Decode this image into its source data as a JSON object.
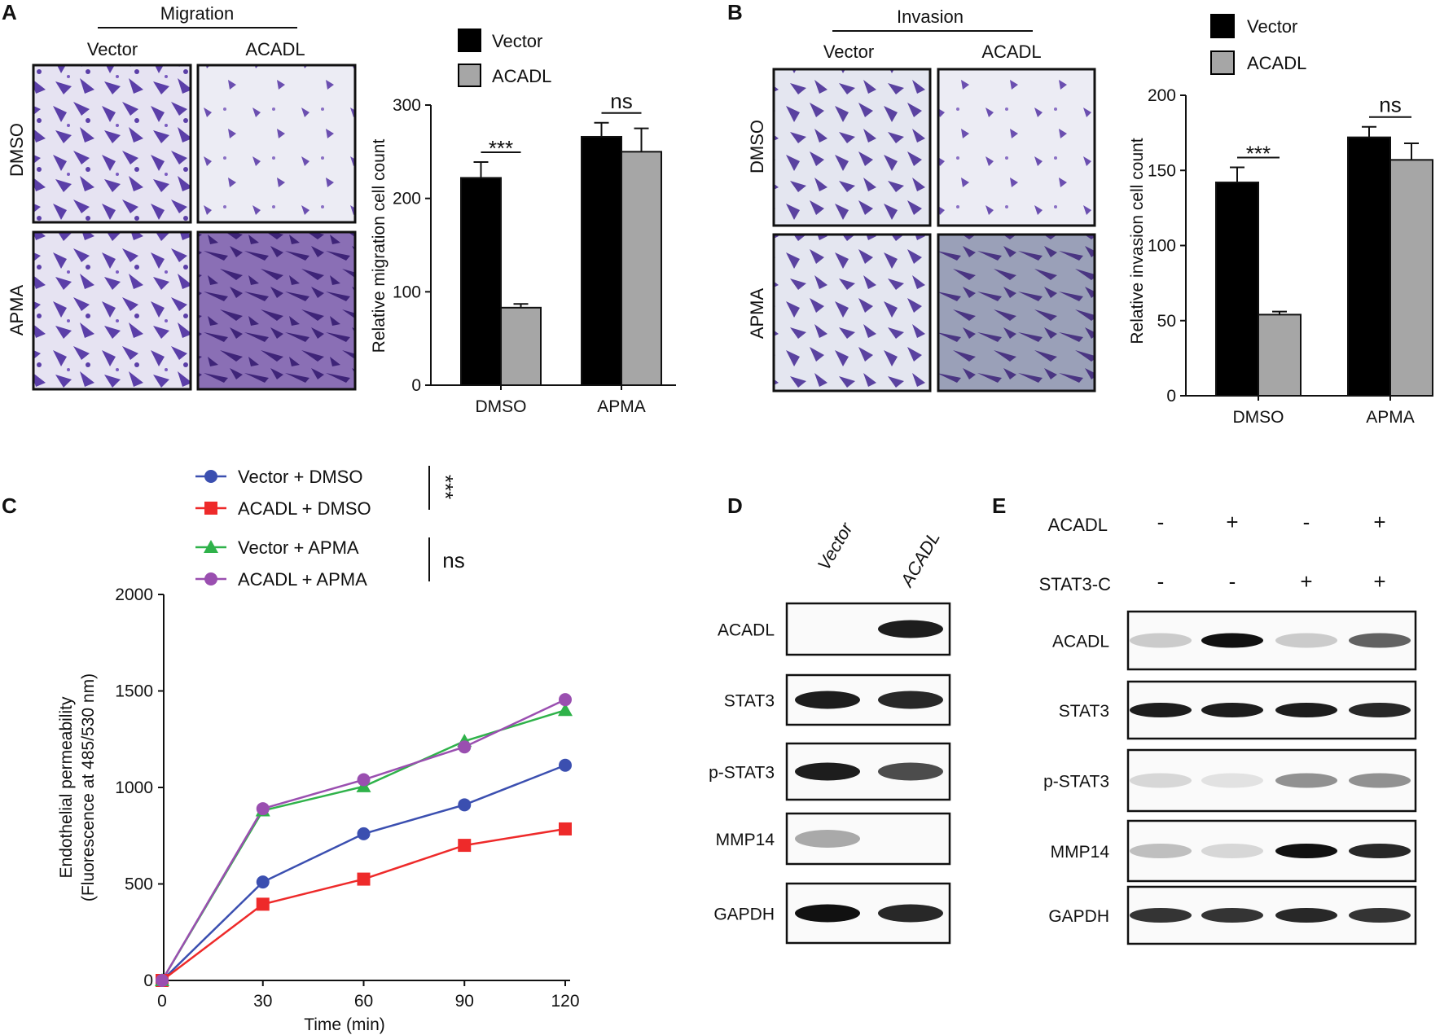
{
  "panels": {
    "A": {
      "letter": "A",
      "group_label": "Migration",
      "columns": [
        "Vector",
        "ACADL"
      ],
      "rows": [
        "DMSO",
        "APMA"
      ]
    },
    "B": {
      "letter": "B",
      "group_label": "Invasion",
      "columns": [
        "Vector",
        "ACADL"
      ],
      "rows": [
        "DMSO",
        "APMA"
      ]
    },
    "C": {
      "letter": "C"
    },
    "D": {
      "letter": "D",
      "lanes": [
        "Vector",
        "ACADL"
      ],
      "blots": [
        "ACADL",
        "STAT3",
        "p-STAT3",
        "MMP14",
        "GAPDH"
      ]
    },
    "E": {
      "letter": "E",
      "conditions": [
        {
          "label": "ACADL",
          "values": [
            "-",
            "+",
            "-",
            "+"
          ]
        },
        {
          "label": "STAT3-C",
          "values": [
            "-",
            "-",
            "+",
            "+"
          ]
        }
      ],
      "blots": [
        "ACADL",
        "STAT3",
        "p-STAT3",
        "MMP14",
        "GAPDH"
      ]
    }
  },
  "chart_data": [
    {
      "id": "A-bar",
      "type": "bar",
      "categories": [
        "DMSO",
        "APMA"
      ],
      "series": [
        {
          "name": "Vector",
          "color": "#000000",
          "values": [
            222,
            266
          ],
          "errors": [
            17,
            15
          ]
        },
        {
          "name": "ACADL",
          "color": "#a6a6a6",
          "values": [
            83,
            250
          ],
          "errors": [
            4,
            25
          ]
        }
      ],
      "ylabel": "Relative migration cell count",
      "ylim": [
        0,
        300
      ],
      "yticks": [
        "0",
        "100",
        "200",
        "300"
      ],
      "significance": [
        "***",
        "ns"
      ]
    },
    {
      "id": "B-bar",
      "type": "bar",
      "categories": [
        "DMSO",
        "APMA"
      ],
      "series": [
        {
          "name": "Vector",
          "color": "#000000",
          "values": [
            142,
            172
          ],
          "errors": [
            10,
            7
          ]
        },
        {
          "name": "ACADL",
          "color": "#a6a6a6",
          "values": [
            54,
            157
          ],
          "errors": [
            2,
            11
          ]
        }
      ],
      "ylabel": "Relative invasion cell count",
      "ylim": [
        0,
        200
      ],
      "yticks": [
        "0",
        "50",
        "100",
        "150",
        "200"
      ],
      "significance": [
        "***",
        "ns"
      ]
    },
    {
      "id": "C-line",
      "type": "line",
      "x": [
        0,
        30,
        60,
        90,
        120
      ],
      "xticks": [
        "0",
        "30",
        "60",
        "90",
        "120"
      ],
      "xlabel": "Time (min)",
      "ylabel": "Endothelial permeability",
      "ylabel2": "(Fluorescence at 485/530 nm)",
      "ylim": [
        0,
        2000
      ],
      "yticks": [
        "0",
        "500",
        "1000",
        "1500",
        "2000"
      ],
      "series": [
        {
          "name": "Vector + DMSO",
          "color": "#3b4fb0",
          "marker": "circle",
          "values": [
            0,
            510,
            760,
            910,
            1115
          ]
        },
        {
          "name": "ACADL + DMSO",
          "color": "#ee2a2a",
          "marker": "square",
          "values": [
            0,
            395,
            525,
            700,
            785
          ]
        },
        {
          "name": "Vector + APMA",
          "color": "#2fb24a",
          "marker": "triangle",
          "values": [
            0,
            880,
            1005,
            1240,
            1400
          ]
        },
        {
          "name": "ACADL + APMA",
          "color": "#9a4fb0",
          "marker": "circle",
          "values": [
            0,
            890,
            1040,
            1210,
            1455
          ]
        }
      ],
      "significance": [
        "***",
        "ns"
      ]
    }
  ]
}
